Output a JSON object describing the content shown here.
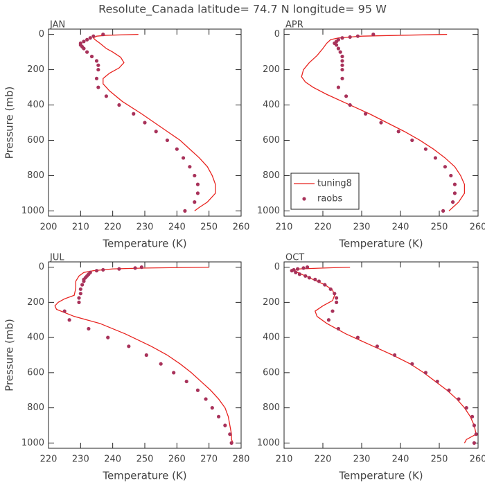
{
  "title": "Resolute_Canada  latitude= 74.7 N longitude= 95 W",
  "chart_data": [
    {
      "type": "line",
      "panel_label": "JAN",
      "xlabel": "Temperature (K)",
      "ylabel": "Pressure (mb)",
      "xlim": [
        200,
        260
      ],
      "xticks": [
        200,
        210,
        220,
        230,
        240,
        250,
        260
      ],
      "ylim": [
        1030,
        -30
      ],
      "yticks": [
        0,
        200,
        400,
        600,
        800,
        1000
      ],
      "series": [
        {
          "color": "#e8231f",
          "style": "line",
          "x": [
            228,
            218,
            215,
            214,
            214.5,
            216,
            218,
            220,
            222.5,
            223.5,
            222,
            219,
            217,
            217,
            219,
            223,
            229,
            233,
            237,
            241,
            244,
            247,
            249.5,
            251,
            252,
            252,
            249.5,
            247,
            245.5
          ],
          "y": [
            0,
            5,
            10,
            20,
            30,
            50,
            80,
            100,
            130,
            160,
            190,
            220,
            250,
            280,
            320,
            380,
            450,
            500,
            550,
            600,
            650,
            700,
            750,
            800,
            850,
            900,
            950,
            980,
            1000
          ]
        },
        {
          "color": "#a8325a",
          "style": "markers",
          "x": [
            217,
            214,
            213,
            212,
            211,
            210,
            210,
            210.5,
            211,
            212,
            213.5,
            215,
            215.5,
            215.5,
            215,
            215.5,
            218,
            222,
            226.5,
            230,
            233.5,
            237,
            240,
            242,
            244,
            245.5,
            246.5,
            246.5,
            245.5,
            242.5
          ],
          "y": [
            0,
            10,
            20,
            30,
            40,
            50,
            60,
            70,
            80,
            100,
            125,
            150,
            175,
            200,
            250,
            300,
            350,
            400,
            450,
            500,
            550,
            600,
            650,
            700,
            750,
            800,
            850,
            900,
            950,
            1000
          ]
        }
      ]
    },
    {
      "type": "line",
      "panel_label": "APR",
      "xlabel": "Temperature (K)",
      "xlim": [
        210,
        260
      ],
      "xticks": [
        210,
        220,
        230,
        240,
        250,
        260
      ],
      "ylim": [
        1030,
        -30
      ],
      "yticks": [
        0,
        200,
        400,
        600,
        800,
        1000
      ],
      "legend": "lower left",
      "series": [
        {
          "name": "tuning8",
          "color": "#e8231f",
          "style": "line",
          "x": [
            252,
            240,
            230,
            224,
            222,
            221,
            220,
            218.5,
            216.5,
            215,
            214.5,
            215.5,
            217.5,
            221,
            227,
            232,
            236.5,
            241,
            245,
            248.5,
            251.5,
            254,
            255.5,
            256.5,
            256.5,
            255,
            253.5,
            252.5
          ],
          "y": [
            0,
            5,
            10,
            20,
            30,
            50,
            80,
            120,
            160,
            200,
            240,
            270,
            300,
            340,
            400,
            450,
            500,
            550,
            600,
            650,
            700,
            750,
            800,
            850,
            900,
            950,
            980,
            1000
          ]
        },
        {
          "name": "raobs",
          "color": "#a8325a",
          "style": "markers",
          "x": [
            233,
            229,
            227,
            225,
            224,
            223.5,
            223,
            223.5,
            224,
            224.5,
            225,
            225,
            225,
            225,
            225,
            224,
            226,
            227,
            231,
            235,
            239.5,
            243,
            246.5,
            249,
            251.5,
            253,
            254,
            254,
            253.5,
            251
          ],
          "y": [
            0,
            10,
            15,
            20,
            30,
            40,
            50,
            60,
            80,
            100,
            125,
            150,
            175,
            200,
            250,
            300,
            350,
            400,
            450,
            500,
            550,
            600,
            650,
            700,
            750,
            800,
            850,
            900,
            950,
            1000
          ]
        }
      ]
    },
    {
      "type": "line",
      "panel_label": "JUL",
      "xlabel": "Temperature (K)",
      "ylabel": "Pressure (mb)",
      "xlim": [
        220,
        280
      ],
      "xticks": [
        220,
        230,
        240,
        250,
        260,
        270,
        280
      ],
      "ylim": [
        1030,
        -30
      ],
      "yticks": [
        0,
        200,
        400,
        600,
        800,
        1000
      ],
      "series": [
        {
          "color": "#e8231f",
          "style": "line",
          "x": [
            270,
            250,
            240,
            234,
            231,
            229.5,
            228.5,
            228.5,
            228,
            225,
            223,
            222,
            222.5,
            228,
            236,
            244,
            252,
            257,
            261,
            264.5,
            267.5,
            270.5,
            273,
            275,
            276,
            276.5,
            277,
            277,
            277.5
          ],
          "y": [
            0,
            5,
            10,
            20,
            30,
            50,
            80,
            120,
            160,
            180,
            200,
            220,
            240,
            280,
            320,
            380,
            450,
            500,
            550,
            600,
            650,
            700,
            750,
            800,
            850,
            900,
            950,
            980,
            1000
          ]
        },
        {
          "color": "#a8325a",
          "style": "markers",
          "x": [
            249,
            247,
            242,
            237,
            235,
            233,
            232.5,
            232,
            231.5,
            231,
            231,
            230.5,
            230,
            230,
            229.5,
            229.5,
            225,
            226.5,
            232.5,
            238.5,
            245,
            250.5,
            255,
            259,
            263,
            266.5,
            269,
            271,
            273,
            275,
            276.5,
            277
          ],
          "y": [
            0,
            5,
            10,
            15,
            20,
            30,
            40,
            50,
            60,
            70,
            80,
            100,
            125,
            150,
            175,
            200,
            250,
            300,
            350,
            400,
            450,
            500,
            550,
            600,
            650,
            700,
            750,
            800,
            850,
            900,
            950,
            1000
          ]
        }
      ]
    },
    {
      "type": "line",
      "panel_label": "OCT",
      "xlabel": "Temperature (K)",
      "xlim": [
        210,
        260
      ],
      "xticks": [
        210,
        220,
        230,
        240,
        250,
        260
      ],
      "ylim": [
        1030,
        -30
      ],
      "yticks": [
        0,
        200,
        400,
        600,
        800,
        1000
      ],
      "series": [
        {
          "color": "#e8231f",
          "style": "line",
          "x": [
            227,
            220,
            214,
            212.5,
            213.5,
            215.5,
            218.5,
            220.5,
            222.5,
            223,
            222.5,
            220,
            218,
            218.5,
            221,
            226,
            233,
            238,
            242.5,
            246,
            249,
            252,
            254.5,
            256.5,
            258,
            259,
            259.5,
            257,
            256.5
          ],
          "y": [
            0,
            5,
            10,
            20,
            30,
            50,
            80,
            100,
            130,
            160,
            190,
            220,
            250,
            280,
            320,
            380,
            450,
            500,
            550,
            600,
            650,
            700,
            750,
            800,
            850,
            900,
            950,
            980,
            1000
          ]
        },
        {
          "color": "#a8325a",
          "style": "markers",
          "x": [
            216,
            215,
            213.5,
            212.5,
            212,
            213,
            214,
            215.5,
            216.5,
            218,
            219,
            220.5,
            222,
            223,
            223.5,
            223.5,
            222.5,
            221.5,
            224,
            229,
            234,
            238.5,
            243,
            246.5,
            249.5,
            252.5,
            255,
            257,
            258.5,
            259,
            259.5,
            259
          ],
          "y": [
            0,
            5,
            10,
            15,
            20,
            30,
            40,
            50,
            60,
            70,
            80,
            100,
            125,
            150,
            175,
            200,
            250,
            300,
            350,
            400,
            450,
            500,
            550,
            600,
            650,
            700,
            750,
            800,
            850,
            900,
            950,
            1000
          ]
        }
      ]
    }
  ]
}
